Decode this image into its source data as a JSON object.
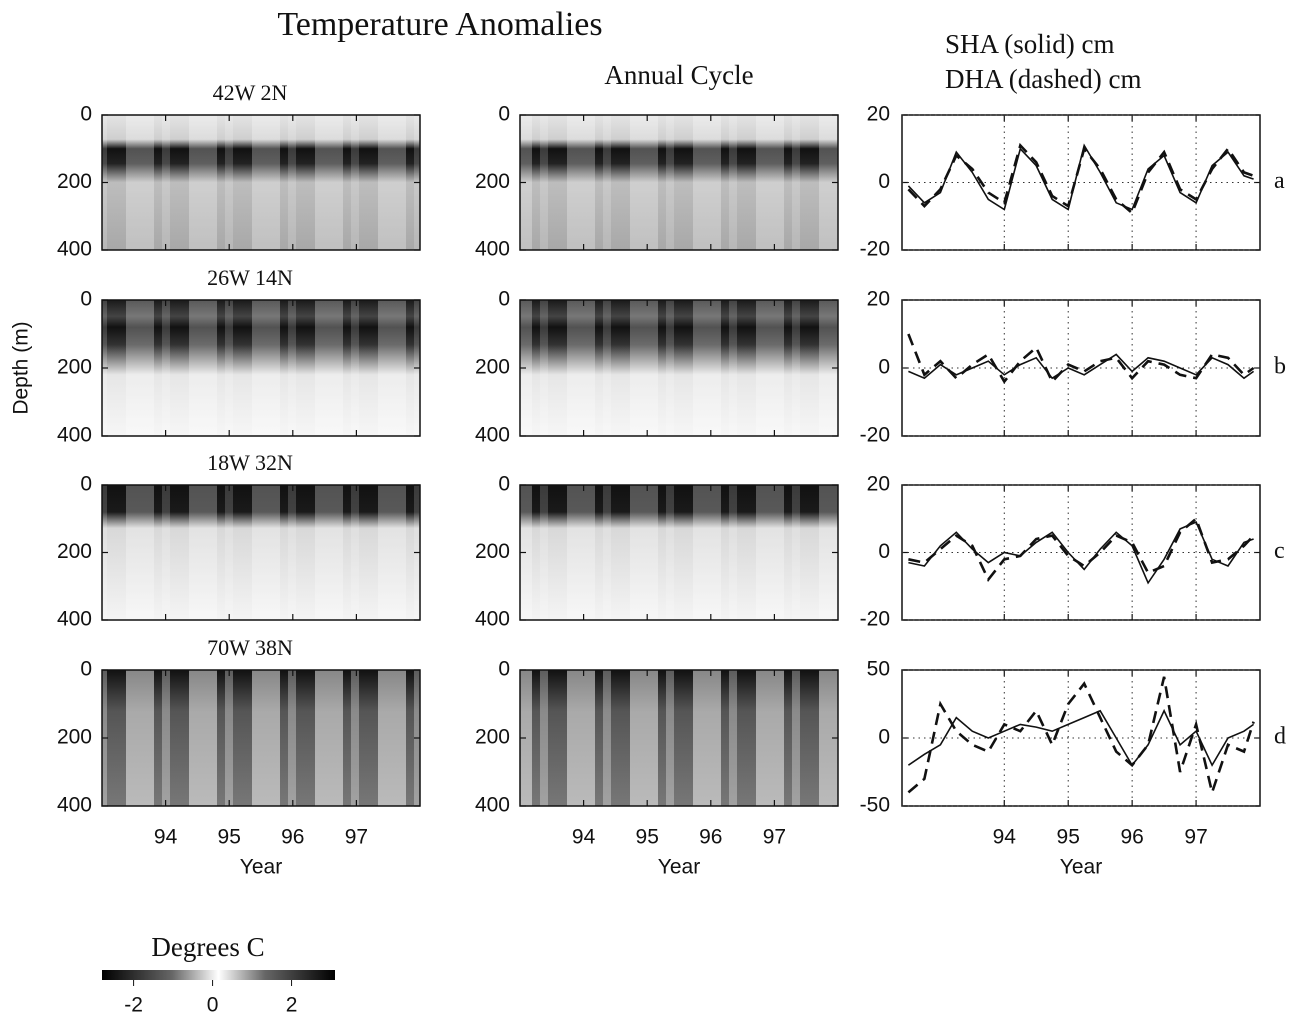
{
  "title": "Temperature Anomalies",
  "colorbar": {
    "label": "Degrees C",
    "lim": [
      -2.8,
      3.1
    ],
    "ticks": [
      -2,
      0,
      2
    ]
  },
  "chart_data": [
    {
      "type": "heatmap",
      "title": "42W 2N",
      "xlim": [
        93,
        98
      ],
      "xticks": [
        94,
        95,
        96,
        97
      ],
      "ylim": [
        0,
        400
      ],
      "yticks": [
        0,
        200,
        400
      ],
      "invert_y": true
    },
    {
      "type": "heatmap",
      "title": "Annual Cycle",
      "xlim": [
        93,
        98
      ],
      "xticks": [
        94,
        95,
        96,
        97
      ],
      "ylim": [
        0,
        400
      ],
      "yticks": [
        0,
        200,
        400
      ],
      "invert_y": true
    },
    {
      "type": "line",
      "label": "a",
      "xlim": [
        92.4,
        98
      ],
      "xticks": [
        94,
        95,
        96,
        97
      ],
      "ylim": [
        -20,
        20
      ],
      "yticks": [
        -20,
        0,
        20
      ],
      "grid": true,
      "x": [
        92.5,
        92.75,
        93.0,
        93.25,
        93.5,
        93.75,
        94.0,
        94.25,
        94.5,
        94.75,
        95.0,
        95.25,
        95.5,
        95.75,
        96.0,
        96.25,
        96.5,
        96.75,
        97.0,
        97.25,
        97.5,
        97.75,
        97.9
      ],
      "series": [
        {
          "name": "SHA (solid) cm",
          "color": "#111111",
          "style": "solid",
          "values": [
            -1,
            -6,
            -3,
            9,
            3,
            -5,
            -8,
            10,
            5,
            -5,
            -8,
            11,
            3,
            -6,
            -8,
            4,
            8,
            -3,
            -6,
            5,
            9,
            2,
            1
          ]
        },
        {
          "name": "DHA (dashed) cm",
          "color": "#111111",
          "style": "dashed",
          "values": [
            -2,
            -7,
            -2,
            8,
            4,
            -3,
            -6,
            11,
            6,
            -4,
            -7,
            10,
            4,
            -5,
            -9,
            3,
            9,
            -2,
            -5,
            4,
            10,
            3,
            2
          ]
        }
      ]
    },
    {
      "type": "heatmap",
      "title": "26W 14N",
      "ylabel": "Depth (m)",
      "xlim": [
        93,
        98
      ],
      "xticks": [
        94,
        95,
        96,
        97
      ],
      "ylim": [
        0,
        400
      ],
      "yticks": [
        0,
        200,
        400
      ],
      "invert_y": true
    },
    {
      "type": "heatmap",
      "xlim": [
        93,
        98
      ],
      "xticks": [
        94,
        95,
        96,
        97
      ],
      "ylim": [
        0,
        400
      ],
      "yticks": [
        0,
        200,
        400
      ],
      "invert_y": true
    },
    {
      "type": "line",
      "label": "b",
      "xlim": [
        92.4,
        98
      ],
      "xticks": [
        94,
        95,
        96,
        97
      ],
      "ylim": [
        -20,
        20
      ],
      "yticks": [
        -20,
        0,
        20
      ],
      "grid": true,
      "x": [
        92.5,
        92.75,
        93.0,
        93.25,
        93.5,
        93.75,
        94.0,
        94.25,
        94.5,
        94.75,
        95.0,
        95.25,
        95.5,
        95.75,
        96.0,
        96.25,
        96.5,
        96.75,
        97.0,
        97.25,
        97.5,
        97.75,
        97.9
      ],
      "series": [
        {
          "color": "#111111",
          "style": "solid",
          "values": [
            -1,
            -3,
            1,
            -2,
            0,
            2,
            -2,
            1,
            3,
            -3,
            0,
            -2,
            1,
            4,
            -1,
            3,
            2,
            0,
            -2,
            3,
            1,
            -3,
            -1
          ]
        },
        {
          "color": "#111111",
          "style": "dashed",
          "values": [
            10,
            -2,
            2,
            -3,
            1,
            4,
            -4,
            2,
            6,
            -4,
            1,
            -1,
            2,
            3,
            -3,
            2,
            1,
            -2,
            -3,
            4,
            3,
            -2,
            0
          ]
        }
      ]
    },
    {
      "type": "heatmap",
      "title": "18W 32N",
      "xlim": [
        93,
        98
      ],
      "xticks": [
        94,
        95,
        96,
        97
      ],
      "ylim": [
        0,
        400
      ],
      "yticks": [
        0,
        200,
        400
      ],
      "invert_y": true
    },
    {
      "type": "heatmap",
      "xlim": [
        93,
        98
      ],
      "xticks": [
        94,
        95,
        96,
        97
      ],
      "ylim": [
        0,
        400
      ],
      "yticks": [
        0,
        200,
        400
      ],
      "invert_y": true
    },
    {
      "type": "line",
      "label": "c",
      "xlim": [
        92.4,
        98
      ],
      "xticks": [
        94,
        95,
        96,
        97
      ],
      "ylim": [
        -20,
        20
      ],
      "yticks": [
        -20,
        0,
        20
      ],
      "grid": true,
      "x": [
        92.5,
        92.75,
        93.0,
        93.25,
        93.5,
        93.75,
        94.0,
        94.25,
        94.5,
        94.75,
        95.0,
        95.25,
        95.5,
        95.75,
        96.0,
        96.25,
        96.5,
        96.75,
        97.0,
        97.25,
        97.5,
        97.75,
        97.9
      ],
      "series": [
        {
          "color": "#111111",
          "style": "solid",
          "values": [
            -3,
            -4,
            2,
            6,
            1,
            -3,
            0,
            -1,
            3,
            6,
            0,
            -5,
            1,
            6,
            2,
            -9,
            -2,
            7,
            9,
            -2,
            -4,
            3,
            4
          ]
        },
        {
          "color": "#111111",
          "style": "dashed",
          "values": [
            -2,
            -3,
            1,
            5,
            2,
            -8,
            -2,
            -1,
            4,
            5,
            -1,
            -4,
            0,
            5,
            3,
            -6,
            -4,
            6,
            10,
            -3,
            -2,
            2,
            5
          ]
        }
      ]
    },
    {
      "type": "heatmap",
      "title": "70W 38N",
      "xlabel": "Year",
      "xlim": [
        93,
        98
      ],
      "xticks": [
        94,
        95,
        96,
        97
      ],
      "ylim": [
        0,
        400
      ],
      "yticks": [
        0,
        200,
        400
      ],
      "invert_y": true
    },
    {
      "type": "heatmap",
      "xlabel": "Year",
      "xlim": [
        93,
        98
      ],
      "xticks": [
        94,
        95,
        96,
        97
      ],
      "ylim": [
        0,
        400
      ],
      "yticks": [
        0,
        200,
        400
      ],
      "invert_y": true
    },
    {
      "type": "line",
      "label": "d",
      "xlabel": "Year",
      "xlim": [
        92.4,
        98
      ],
      "xticks": [
        94,
        95,
        96,
        97
      ],
      "ylim": [
        -50,
        50
      ],
      "yticks": [
        -50,
        0,
        50
      ],
      "grid": true,
      "x": [
        92.5,
        92.75,
        93.0,
        93.25,
        93.5,
        93.75,
        94.0,
        94.25,
        94.5,
        94.75,
        95.0,
        95.25,
        95.5,
        95.75,
        96.0,
        96.25,
        96.5,
        96.75,
        97.0,
        97.25,
        97.5,
        97.75,
        97.9
      ],
      "series": [
        {
          "color": "#111111",
          "style": "solid",
          "values": [
            -20,
            -12,
            -5,
            15,
            5,
            0,
            5,
            10,
            8,
            5,
            10,
            15,
            20,
            0,
            -20,
            -5,
            20,
            -5,
            5,
            -20,
            0,
            5,
            10
          ]
        },
        {
          "color": "#111111",
          "style": "dashed",
          "values": [
            -40,
            -30,
            25,
            5,
            -5,
            -10,
            10,
            5,
            20,
            -5,
            25,
            40,
            15,
            -10,
            -20,
            -5,
            45,
            -25,
            10,
            -40,
            -5,
            -10,
            12
          ]
        }
      ]
    }
  ]
}
